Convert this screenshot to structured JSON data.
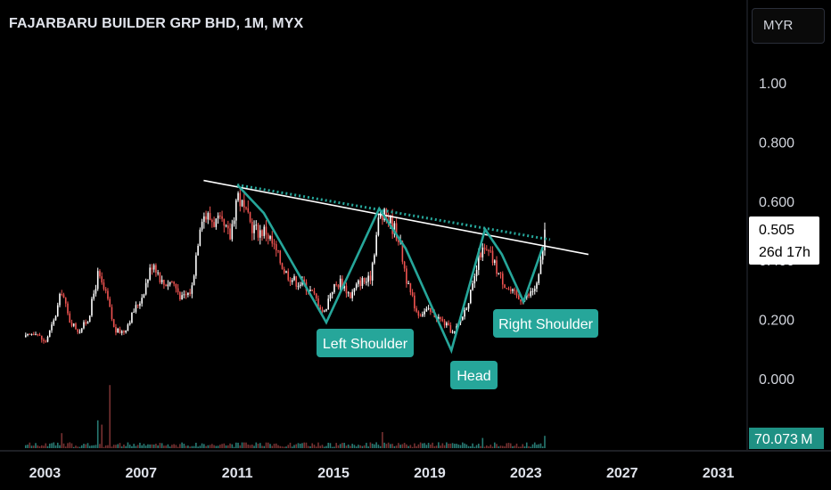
{
  "header": {
    "title": "FAJARBARU BUILDER GRP BHD, 1M, MYX",
    "currency": "MYR"
  },
  "price_scale": {
    "ticks": [
      "1.00",
      "0.800",
      "0.600",
      "0.400",
      "0.200",
      "0.000"
    ],
    "last_price": "0.505",
    "countdown": "26d 17h",
    "volume": "70.073 M"
  },
  "time_scale": {
    "ticks": [
      "2003",
      "2007",
      "2011",
      "2015",
      "2019",
      "2023",
      "2027",
      "2031"
    ]
  },
  "annotations": {
    "left_shoulder": "Left Shoulder",
    "head": "Head",
    "right_shoulder": "Right Shoulder"
  },
  "colors": {
    "up": "#ffffff",
    "down": "#ef5350",
    "pattern": "#26a69a",
    "volume_up": "#2f8f87",
    "volume_down": "#8b3a3a",
    "last_price_bg": "#ffffff",
    "volume_label_bg": "#1f9184"
  },
  "chart_data": {
    "type": "candlestick",
    "title": "FAJARBARU BUILDER GRP BHD, 1M, MYX",
    "y_range": [
      -0.04,
      1.06
    ],
    "x_range": [
      2001.8,
      2032.2
    ],
    "trend_line": {
      "from": [
        2009.6,
        0.67
      ],
      "to": [
        2025.6,
        0.42
      ]
    },
    "dotted_neckline": {
      "from": [
        2011.0,
        0.655
      ],
      "to": [
        2024.0,
        0.47
      ]
    },
    "hs_pattern": [
      [
        2011.0,
        0.655
      ],
      [
        2012.1,
        0.56
      ],
      [
        2014.7,
        0.19
      ],
      [
        2016.9,
        0.575
      ],
      [
        2018.0,
        0.44
      ],
      [
        2019.9,
        0.095
      ],
      [
        2021.3,
        0.505
      ],
      [
        2022.0,
        0.42
      ],
      [
        2022.9,
        0.26
      ],
      [
        2023.7,
        0.445
      ]
    ],
    "price_anchors": [
      [
        2002.2,
        0.14
      ],
      [
        2002.6,
        0.16
      ],
      [
        2003.0,
        0.12
      ],
      [
        2003.4,
        0.2
      ],
      [
        2003.7,
        0.3
      ],
      [
        2004.0,
        0.2
      ],
      [
        2004.4,
        0.16
      ],
      [
        2004.8,
        0.2
      ],
      [
        2005.2,
        0.35
      ],
      [
        2005.6,
        0.27
      ],
      [
        2005.9,
        0.16
      ],
      [
        2006.3,
        0.16
      ],
      [
        2006.7,
        0.23
      ],
      [
        2007.0,
        0.27
      ],
      [
        2007.5,
        0.4
      ],
      [
        2007.9,
        0.32
      ],
      [
        2008.3,
        0.33
      ],
      [
        2008.7,
        0.27
      ],
      [
        2009.1,
        0.3
      ],
      [
        2009.5,
        0.56
      ],
      [
        2009.9,
        0.54
      ],
      [
        2010.3,
        0.52
      ],
      [
        2010.7,
        0.48
      ],
      [
        2011.0,
        0.63
      ],
      [
        2011.4,
        0.54
      ],
      [
        2011.8,
        0.5
      ],
      [
        2012.2,
        0.5
      ],
      [
        2012.6,
        0.43
      ],
      [
        2013.0,
        0.36
      ],
      [
        2013.4,
        0.33
      ],
      [
        2013.8,
        0.32
      ],
      [
        2014.2,
        0.28
      ],
      [
        2014.6,
        0.22
      ],
      [
        2014.9,
        0.3
      ],
      [
        2015.3,
        0.33
      ],
      [
        2015.7,
        0.28
      ],
      [
        2016.1,
        0.33
      ],
      [
        2016.5,
        0.33
      ],
      [
        2016.9,
        0.55
      ],
      [
        2017.3,
        0.54
      ],
      [
        2017.7,
        0.48
      ],
      [
        2018.1,
        0.31
      ],
      [
        2018.5,
        0.22
      ],
      [
        2018.9,
        0.23
      ],
      [
        2019.3,
        0.21
      ],
      [
        2019.7,
        0.18
      ],
      [
        2020.0,
        0.15
      ],
      [
        2020.4,
        0.22
      ],
      [
        2020.8,
        0.31
      ],
      [
        2021.1,
        0.43
      ],
      [
        2021.5,
        0.42
      ],
      [
        2021.9,
        0.35
      ],
      [
        2022.3,
        0.3
      ],
      [
        2022.7,
        0.27
      ],
      [
        2023.1,
        0.28
      ],
      [
        2023.5,
        0.32
      ],
      [
        2023.8,
        0.505
      ]
    ],
    "volume_max_M": 100,
    "volume_spikes_M": [
      [
        2003.7,
        28
      ],
      [
        2005.2,
        52
      ],
      [
        2005.4,
        44
      ],
      [
        2005.7,
        118
      ],
      [
        2017.0,
        30
      ],
      [
        2021.2,
        19
      ],
      [
        2023.8,
        23
      ]
    ]
  }
}
